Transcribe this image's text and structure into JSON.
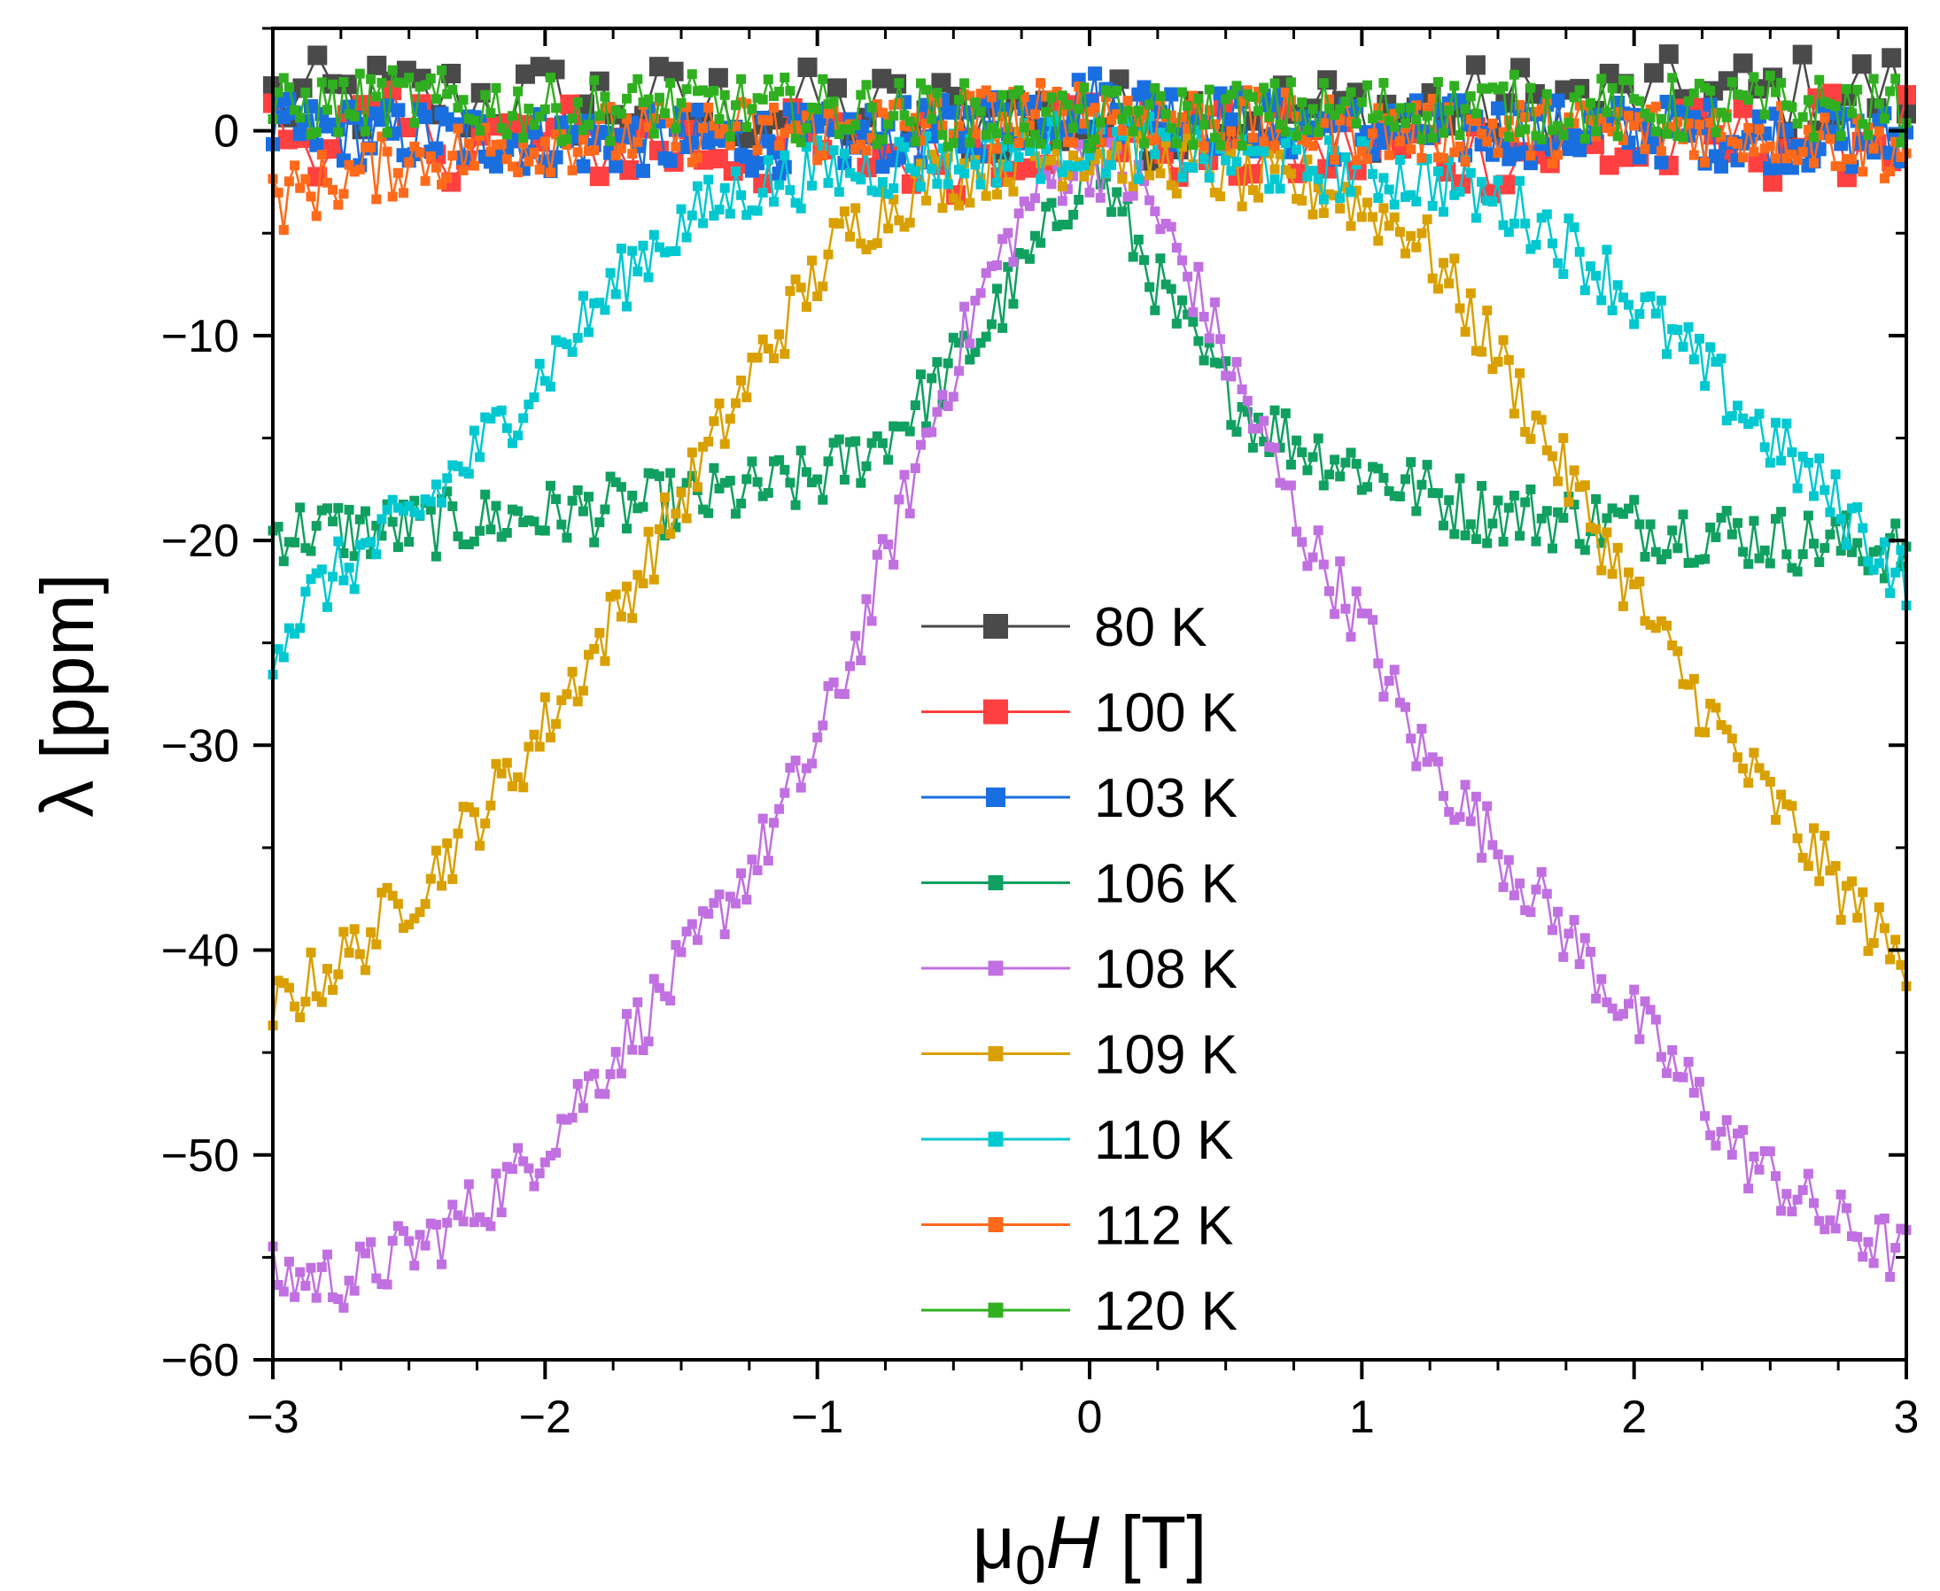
{
  "chart_data": {
    "type": "scatter",
    "mode": "lines+markers",
    "title": "",
    "xlabel": {
      "main": "μ",
      "sub": "0",
      "italic": "H",
      "unit": " [T]"
    },
    "ylabel": "λ [ppm]",
    "xlim": [
      -3,
      3
    ],
    "ylim": [
      -60,
      5
    ],
    "xticks": [
      -3,
      -2,
      -1,
      0,
      1,
      2,
      3
    ],
    "xtick_labels": [
      "−3",
      "−2",
      "−1",
      "0",
      "1",
      "2",
      "3"
    ],
    "yticks": [
      0,
      -10,
      -20,
      -30,
      -40,
      -50,
      -60
    ],
    "ytick_labels": [
      "0",
      "−10",
      "−20",
      "−30",
      "−40",
      "−50",
      "−60"
    ],
    "grid": false,
    "legend_position": "center-bottom",
    "series": [
      {
        "name": "80 K",
        "color": "#4a4a4a",
        "marker": "square",
        "marker_size": "large",
        "x": [
          -3,
          -2,
          -1,
          -0.5,
          0,
          0.5,
          1,
          2,
          3
        ],
        "y": [
          1.5,
          1.5,
          1.0,
          0.8,
          0.5,
          0.8,
          1.0,
          1.5,
          2.0
        ]
      },
      {
        "name": "100 K",
        "color": "#ff4040",
        "marker": "square",
        "marker_size": "large",
        "x": [
          -3,
          -2,
          -1,
          -0.5,
          0,
          0.5,
          1,
          2,
          3
        ],
        "y": [
          0,
          -0.5,
          -1.0,
          -1.0,
          0.5,
          -1.0,
          -1.0,
          -1.0,
          0
        ]
      },
      {
        "name": "103 K",
        "color": "#1a6fe0",
        "marker": "square",
        "marker_size": "medium",
        "x": [
          -3,
          -2,
          -1,
          -0.5,
          0,
          0.5,
          1,
          2,
          3
        ],
        "y": [
          0,
          -0.5,
          -0.5,
          0,
          1.5,
          0.5,
          0,
          0,
          -0.5
        ]
      },
      {
        "name": "106 K",
        "color": "#10a060",
        "marker": "square",
        "marker_size": "small",
        "x": [
          -3,
          -2.6,
          -2.2,
          -1.8,
          -1.4,
          -1.0,
          -0.8,
          -0.6,
          -0.4,
          -0.25,
          -0.15,
          -0.05,
          0,
          0.05,
          0.15,
          0.25,
          0.4,
          0.6,
          0.8,
          1.0,
          1.4,
          1.8,
          2.2,
          2.6,
          3
        ],
        "y": [
          -19.5,
          -19.5,
          -19,
          -18.5,
          -18,
          -17,
          -15.5,
          -13,
          -10,
          -7,
          -5,
          -2.5,
          -1,
          -2.5,
          -5,
          -7.5,
          -11,
          -14,
          -15.5,
          -16.5,
          -18.5,
          -19,
          -19.5,
          -20,
          -20.5
        ]
      },
      {
        "name": "108 K",
        "color": "#c070e0",
        "marker": "square",
        "marker_size": "small",
        "x": [
          -3,
          -2.7,
          -2.4,
          -2.1,
          -1.8,
          -1.5,
          -1.2,
          -1.0,
          -0.8,
          -0.6,
          -0.4,
          -0.2,
          -0.1,
          0,
          0.1,
          0.2,
          0.4,
          0.6,
          0.8,
          1.0,
          1.2,
          1.5,
          1.8,
          2.1,
          2.4,
          2.7,
          3
        ],
        "y": [
          -56,
          -56,
          -54,
          -51,
          -46,
          -41,
          -35,
          -30,
          -23,
          -15,
          -8,
          -3,
          -2,
          -1.5,
          -2,
          -3,
          -8,
          -14,
          -20,
          -24,
          -30,
          -35,
          -40,
          -45,
          -50,
          -53,
          -55
        ]
      },
      {
        "name": "109 K",
        "color": "#d9a000",
        "marker": "square",
        "marker_size": "small",
        "x": [
          -3,
          -2.7,
          -2.4,
          -2.1,
          -1.8,
          -1.5,
          -1.2,
          -0.9,
          -0.6,
          -0.3,
          0,
          0.3,
          0.6,
          0.9,
          1.2,
          1.5,
          1.8,
          2.1,
          2.4,
          2.7,
          3
        ],
        "y": [
          -43,
          -40,
          -36,
          -31,
          -25,
          -18,
          -11,
          -5,
          -2.5,
          -1.5,
          -1,
          -1.5,
          -2.5,
          -3,
          -5,
          -11,
          -18,
          -25,
          -31,
          -36,
          -41
        ]
      },
      {
        "name": "110 K",
        "color": "#00c8d0",
        "marker": "square",
        "marker_size": "small",
        "x": [
          -3,
          -2.8,
          -2.5,
          -2.2,
          -1.9,
          -1.6,
          -1.3,
          -1.0,
          -0.6,
          -0.3,
          0,
          0.3,
          0.6,
          1.0,
          1.3,
          1.6,
          1.9,
          2.2,
          2.5,
          2.8,
          3
        ],
        "y": [
          -25,
          -22,
          -19,
          -15,
          -10,
          -5.5,
          -3,
          -2,
          -1.5,
          -1,
          -0.5,
          -1,
          -1.5,
          -2,
          -2.5,
          -4,
          -7,
          -11,
          -15,
          -19,
          -22
        ]
      },
      {
        "name": "112 K",
        "color": "#ff6a1a",
        "marker": "square",
        "marker_size": "small",
        "x": [
          -3,
          -2.8,
          -2.5,
          -2,
          -1.5,
          -1,
          -0.5,
          0,
          0.5,
          1,
          1.5,
          2,
          2.5,
          3
        ],
        "y": [
          -3.5,
          -2.5,
          -1.5,
          -0.5,
          0,
          0,
          0.5,
          1,
          0.5,
          0,
          0,
          0,
          0,
          -1
        ]
      },
      {
        "name": "120 K",
        "color": "#30b020",
        "marker": "square",
        "marker_size": "small",
        "x": [
          -3,
          -2.5,
          -2,
          -1.5,
          -1,
          -0.5,
          0,
          0.5,
          1,
          1.5,
          2,
          2.5,
          3
        ],
        "y": [
          1,
          1.5,
          1,
          1.2,
          1,
          0.8,
          0.5,
          0.8,
          1,
          1.2,
          1,
          1.2,
          1
        ]
      }
    ]
  }
}
